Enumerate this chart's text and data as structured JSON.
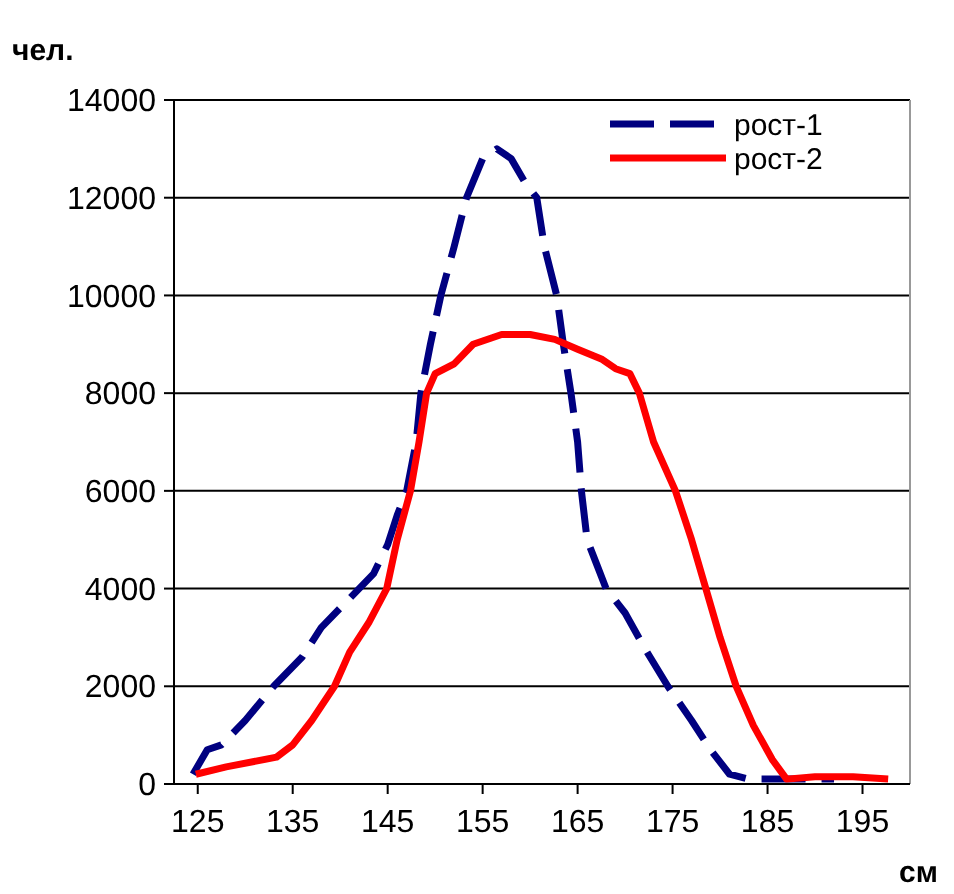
{
  "chart_data": {
    "type": "line",
    "xlabel": "см",
    "ylabel": "чел.",
    "xlim": [
      122.5,
      200
    ],
    "xticks": [
      125,
      135,
      145,
      155,
      165,
      175,
      185,
      195
    ],
    "ylim": [
      0,
      14000
    ],
    "yticks": [
      0,
      2000,
      4000,
      6000,
      8000,
      10000,
      12000,
      14000
    ],
    "grid": "y",
    "legend": "top right",
    "marker": "none",
    "series": [
      {
        "name": "рост-1",
        "color": "#000080",
        "line_style": "dashed",
        "x": [
          124.5,
          126,
          127.5,
          130,
          133,
          136,
          138,
          141,
          143.5,
          145,
          146,
          147,
          148,
          148.5,
          149.5,
          150.6,
          152,
          153.3,
          155,
          156.5,
          158,
          159.5,
          160.7,
          161.5,
          162.8,
          163.5,
          164.3,
          165,
          165.4,
          166,
          167,
          168,
          170,
          172,
          174.5,
          177,
          179,
          181,
          183,
          187,
          192
        ],
        "values": [
          200,
          700,
          800,
          1300,
          2000,
          2600,
          3200,
          3800,
          4300,
          4900,
          5500,
          6000,
          7000,
          8000,
          9000,
          10000,
          11000,
          12000,
          12800,
          13000,
          12800,
          12300,
          12000,
          11000,
          10000,
          9000,
          8000,
          7000,
          6000,
          5000,
          4500,
          4000,
          3500,
          2800,
          2000,
          1300,
          700,
          200,
          100,
          100,
          100
        ]
      },
      {
        "name": "рост-2",
        "color": "#ff0000",
        "line_style": "solid",
        "x": [
          124.8,
          128,
          133.3,
          135,
          137,
          139.4,
          141,
          143,
          144.9,
          146,
          147.4,
          148.3,
          149.1,
          150,
          152,
          154,
          157,
          160,
          162.6,
          165,
          167.5,
          169,
          170.5,
          171.5,
          173,
          175.3,
          177,
          178.5,
          180,
          181.7,
          183.5,
          185.5,
          187,
          190,
          194,
          197.7
        ],
        "values": [
          200,
          350,
          550,
          800,
          1300,
          2000,
          2700,
          3300,
          4000,
          5000,
          6000,
          7000,
          8000,
          8400,
          8600,
          9000,
          9200,
          9200,
          9100,
          8900,
          8700,
          8500,
          8400,
          8000,
          7000,
          6000,
          5000,
          4000,
          3000,
          2000,
          1200,
          500,
          100,
          150,
          150,
          100
        ]
      }
    ]
  }
}
